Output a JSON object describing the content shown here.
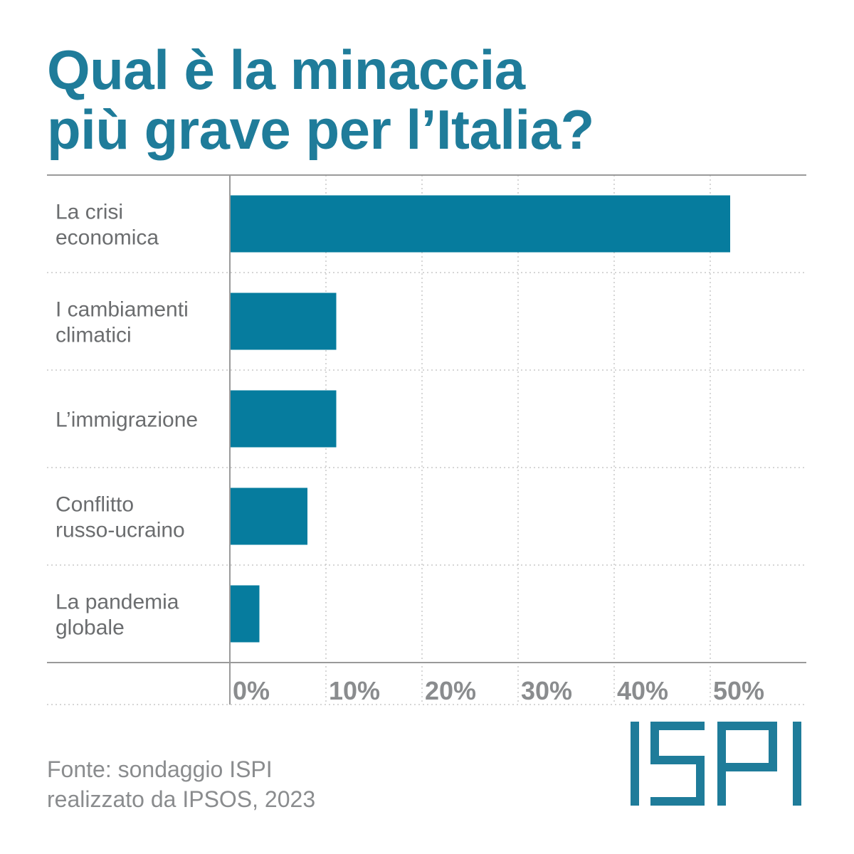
{
  "header": {
    "title_line1": "Qual è la minaccia",
    "title_line2": "più grave per l’Italia?"
  },
  "footer": {
    "source_line1": "Fonte: sondaggio ISPI",
    "source_line2": "realizzato da IPSOS, 2023"
  },
  "logo": {
    "text": "ISPI",
    "color": "#1f7c9a"
  },
  "colors": {
    "accent": "#1f7c9a",
    "bar": "#067c9e",
    "tick_text": "#8a8c8e",
    "label_text": "#6b6d6f"
  },
  "chart_data": {
    "type": "bar",
    "orientation": "horizontal",
    "categories": [
      [
        "La crisi",
        "economica"
      ],
      [
        "I cambiamenti",
        "climatici"
      ],
      [
        "L’immigrazione"
      ],
      [
        "Conflitto",
        "russo-ucraino"
      ],
      [
        "La pandemia",
        "globale"
      ]
    ],
    "values": [
      52,
      11,
      11,
      8,
      3
    ],
    "xlim": [
      0,
      60
    ],
    "xticks": [
      0,
      10,
      20,
      30,
      40,
      50
    ],
    "tick_labels": [
      "0%",
      "10%",
      "20%",
      "30%",
      "40%",
      "50%"
    ],
    "grid": true
  }
}
